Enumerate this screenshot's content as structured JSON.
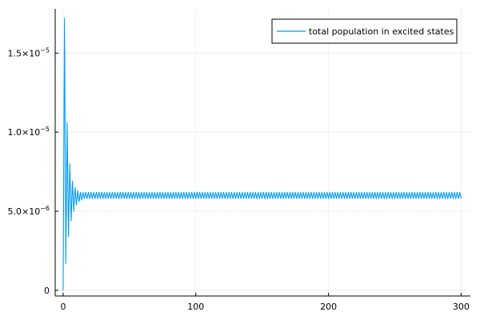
{
  "chart_data": {
    "type": "line",
    "title": "",
    "xlabel": "",
    "ylabel": "",
    "xlim": [
      -6,
      307
    ],
    "ylim": [
      -3.6e-07,
      1.78e-05
    ],
    "x_ticks": [
      {
        "value": 0,
        "label": "0"
      },
      {
        "value": 100,
        "label": "100"
      },
      {
        "value": 200,
        "label": "200"
      },
      {
        "value": 300,
        "label": "300"
      }
    ],
    "y_ticks": [
      {
        "value": 0,
        "label": "0"
      },
      {
        "value": 5e-06,
        "mantissa": "5.0×10",
        "exponent": "−6"
      },
      {
        "value": 1e-05,
        "mantissa": "1.0×10",
        "exponent": "−5"
      },
      {
        "value": 1.5e-05,
        "mantissa": "1.5×10",
        "exponent": "−5"
      }
    ],
    "grid": true,
    "legend_position": "top-right",
    "series": [
      {
        "name": "total population in excited states",
        "color": "#009af9",
        "x_end": 300,
        "steady_mean": 6e-06,
        "steady_amplitude": 2e-07,
        "oscillation_period": 2.0,
        "transient_points": [
          {
            "x": 0.0,
            "y": 0.0
          },
          {
            "x": 1.0,
            "y": 1.72e-05
          },
          {
            "x": 2.0,
            "y": 1.7e-06
          },
          {
            "x": 3.0,
            "y": 1.06e-05
          },
          {
            "x": 4.0,
            "y": 3.4e-06
          },
          {
            "x": 5.0,
            "y": 8e-06
          },
          {
            "x": 6.0,
            "y": 4.4e-06
          },
          {
            "x": 7.0,
            "y": 6.9e-06
          },
          {
            "x": 8.0,
            "y": 5e-06
          },
          {
            "x": 9.0,
            "y": 6.5e-06
          },
          {
            "x": 10.0,
            "y": 5.4e-06
          },
          {
            "x": 11.0,
            "y": 6.3e-06
          },
          {
            "x": 12.0,
            "y": 5.6e-06
          },
          {
            "x": 13.0,
            "y": 6.2e-06
          },
          {
            "x": 14.0,
            "y": 5.7e-06
          },
          {
            "x": 15.0,
            "y": 6.2e-06
          }
        ]
      }
    ]
  }
}
